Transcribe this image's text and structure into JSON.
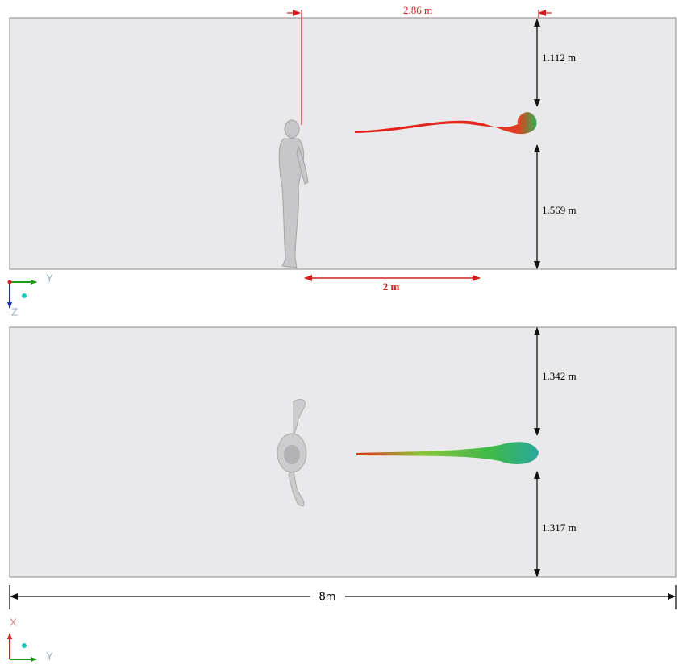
{
  "side_view": {
    "span_label": "2.86 m",
    "upper_gap": "1.112 m",
    "lower_gap": "1.569 m",
    "distance": "2 m",
    "axis_horizontal": "Y",
    "axis_vertical": "Z"
  },
  "top_view": {
    "upper_gap": "1.342 m",
    "lower_gap": "1.317 m",
    "axis_vertical": "X",
    "axis_horizontal": "Y"
  },
  "overall_length": "8m"
}
